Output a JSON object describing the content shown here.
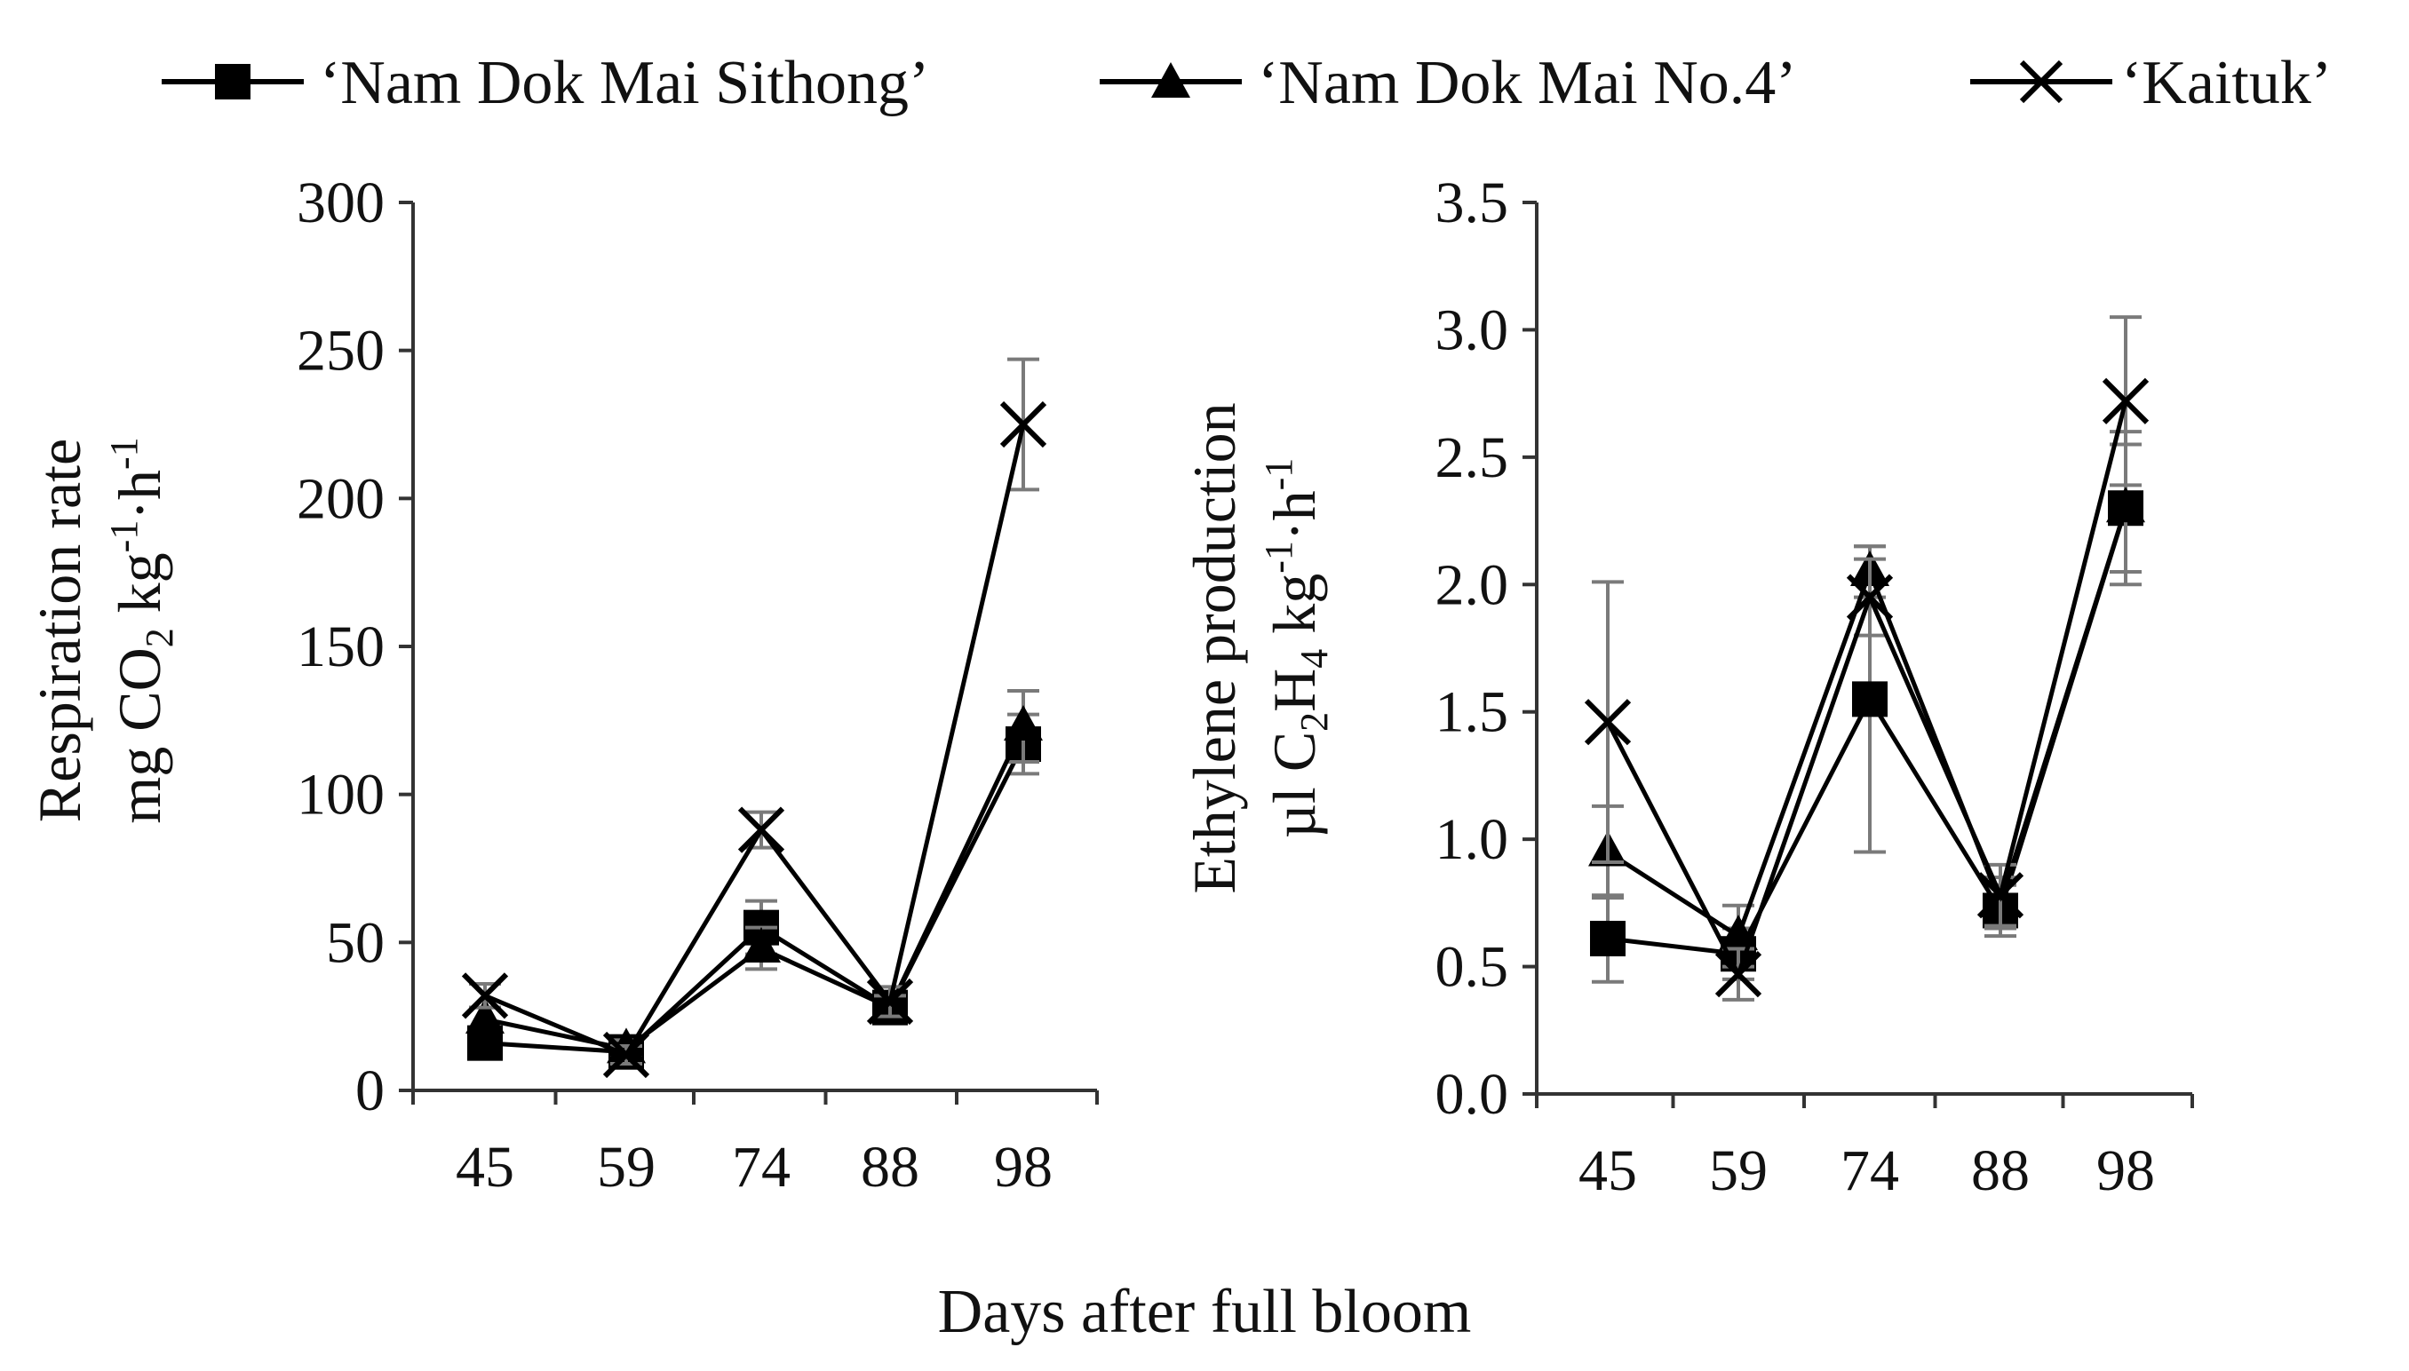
{
  "legend": [
    {
      "label": "‘Nam Dok Mai Sithong’",
      "marker": "square"
    },
    {
      "label": "‘Nam Dok Mai No.4’",
      "marker": "triangle"
    },
    {
      "label": "‘Kaituk’",
      "marker": "cross"
    }
  ],
  "shared_xlabel": "Days after full bloom",
  "chart_data": [
    {
      "type": "line",
      "title": "",
      "categories": [
        "45",
        "59",
        "74",
        "88",
        "98"
      ],
      "ylabel": {
        "line1": "Respiration rate",
        "line2_parts": [
          "mg CO",
          "2",
          " kg",
          "-1",
          "·h",
          "-1"
        ]
      },
      "ylim": [
        0,
        300
      ],
      "yticks": [
        "0",
        "50",
        "100",
        "150",
        "200",
        "250",
        "300"
      ],
      "yticks_values": [
        0,
        50,
        100,
        150,
        200,
        250,
        300
      ],
      "grid": false,
      "series": [
        {
          "name": "‘Nam Dok Mai Sithong’",
          "marker": "square",
          "values": [
            16,
            13,
            55,
            28,
            117
          ],
          "err": [
            3,
            3,
            9,
            4,
            10
          ]
        },
        {
          "name": "‘Nam Dok Mai No.4’",
          "marker": "triangle",
          "values": [
            24,
            14,
            48,
            28,
            123
          ],
          "err": [
            4,
            3,
            7,
            4,
            12
          ]
        },
        {
          "name": "‘Kaituk’",
          "marker": "cross",
          "values": [
            32,
            12,
            88,
            30,
            225
          ],
          "err": [
            4,
            3,
            6,
            5,
            22
          ]
        }
      ]
    },
    {
      "type": "line",
      "title": "",
      "categories": [
        "45",
        "59",
        "74",
        "88",
        "98"
      ],
      "ylabel": {
        "line1": "Ethylene production",
        "line2_parts": [
          "µl C",
          "2",
          "H",
          "4",
          " kg",
          "-1",
          "·h",
          "-1"
        ]
      },
      "ylim": [
        0,
        3.5
      ],
      "yticks": [
        "0.0",
        "0.5",
        "1.0",
        "1.5",
        "2.0",
        "2.5",
        "3.0",
        "3.5"
      ],
      "yticks_values": [
        0,
        0.5,
        1.0,
        1.5,
        2.0,
        2.5,
        3.0,
        3.5
      ],
      "grid": false,
      "series": [
        {
          "name": "‘Nam Dok Mai Sithong’",
          "marker": "square",
          "values": [
            0.61,
            0.55,
            1.55,
            0.72,
            2.3
          ],
          "err": [
            0.17,
            0.1,
            0.6,
            0.1,
            0.25
          ]
        },
        {
          "name": "‘Nam Dok Mai No.4’",
          "marker": "triangle",
          "values": [
            0.95,
            0.62,
            2.05,
            0.75,
            2.3
          ],
          "err": [
            0.18,
            0.12,
            0.1,
            0.1,
            0.3
          ]
        },
        {
          "name": "‘Kaituk’",
          "marker": "cross",
          "values": [
            1.46,
            0.47,
            1.95,
            0.78,
            2.72
          ],
          "err": [
            0.55,
            0.1,
            0.15,
            0.12,
            0.33
          ]
        }
      ]
    }
  ]
}
